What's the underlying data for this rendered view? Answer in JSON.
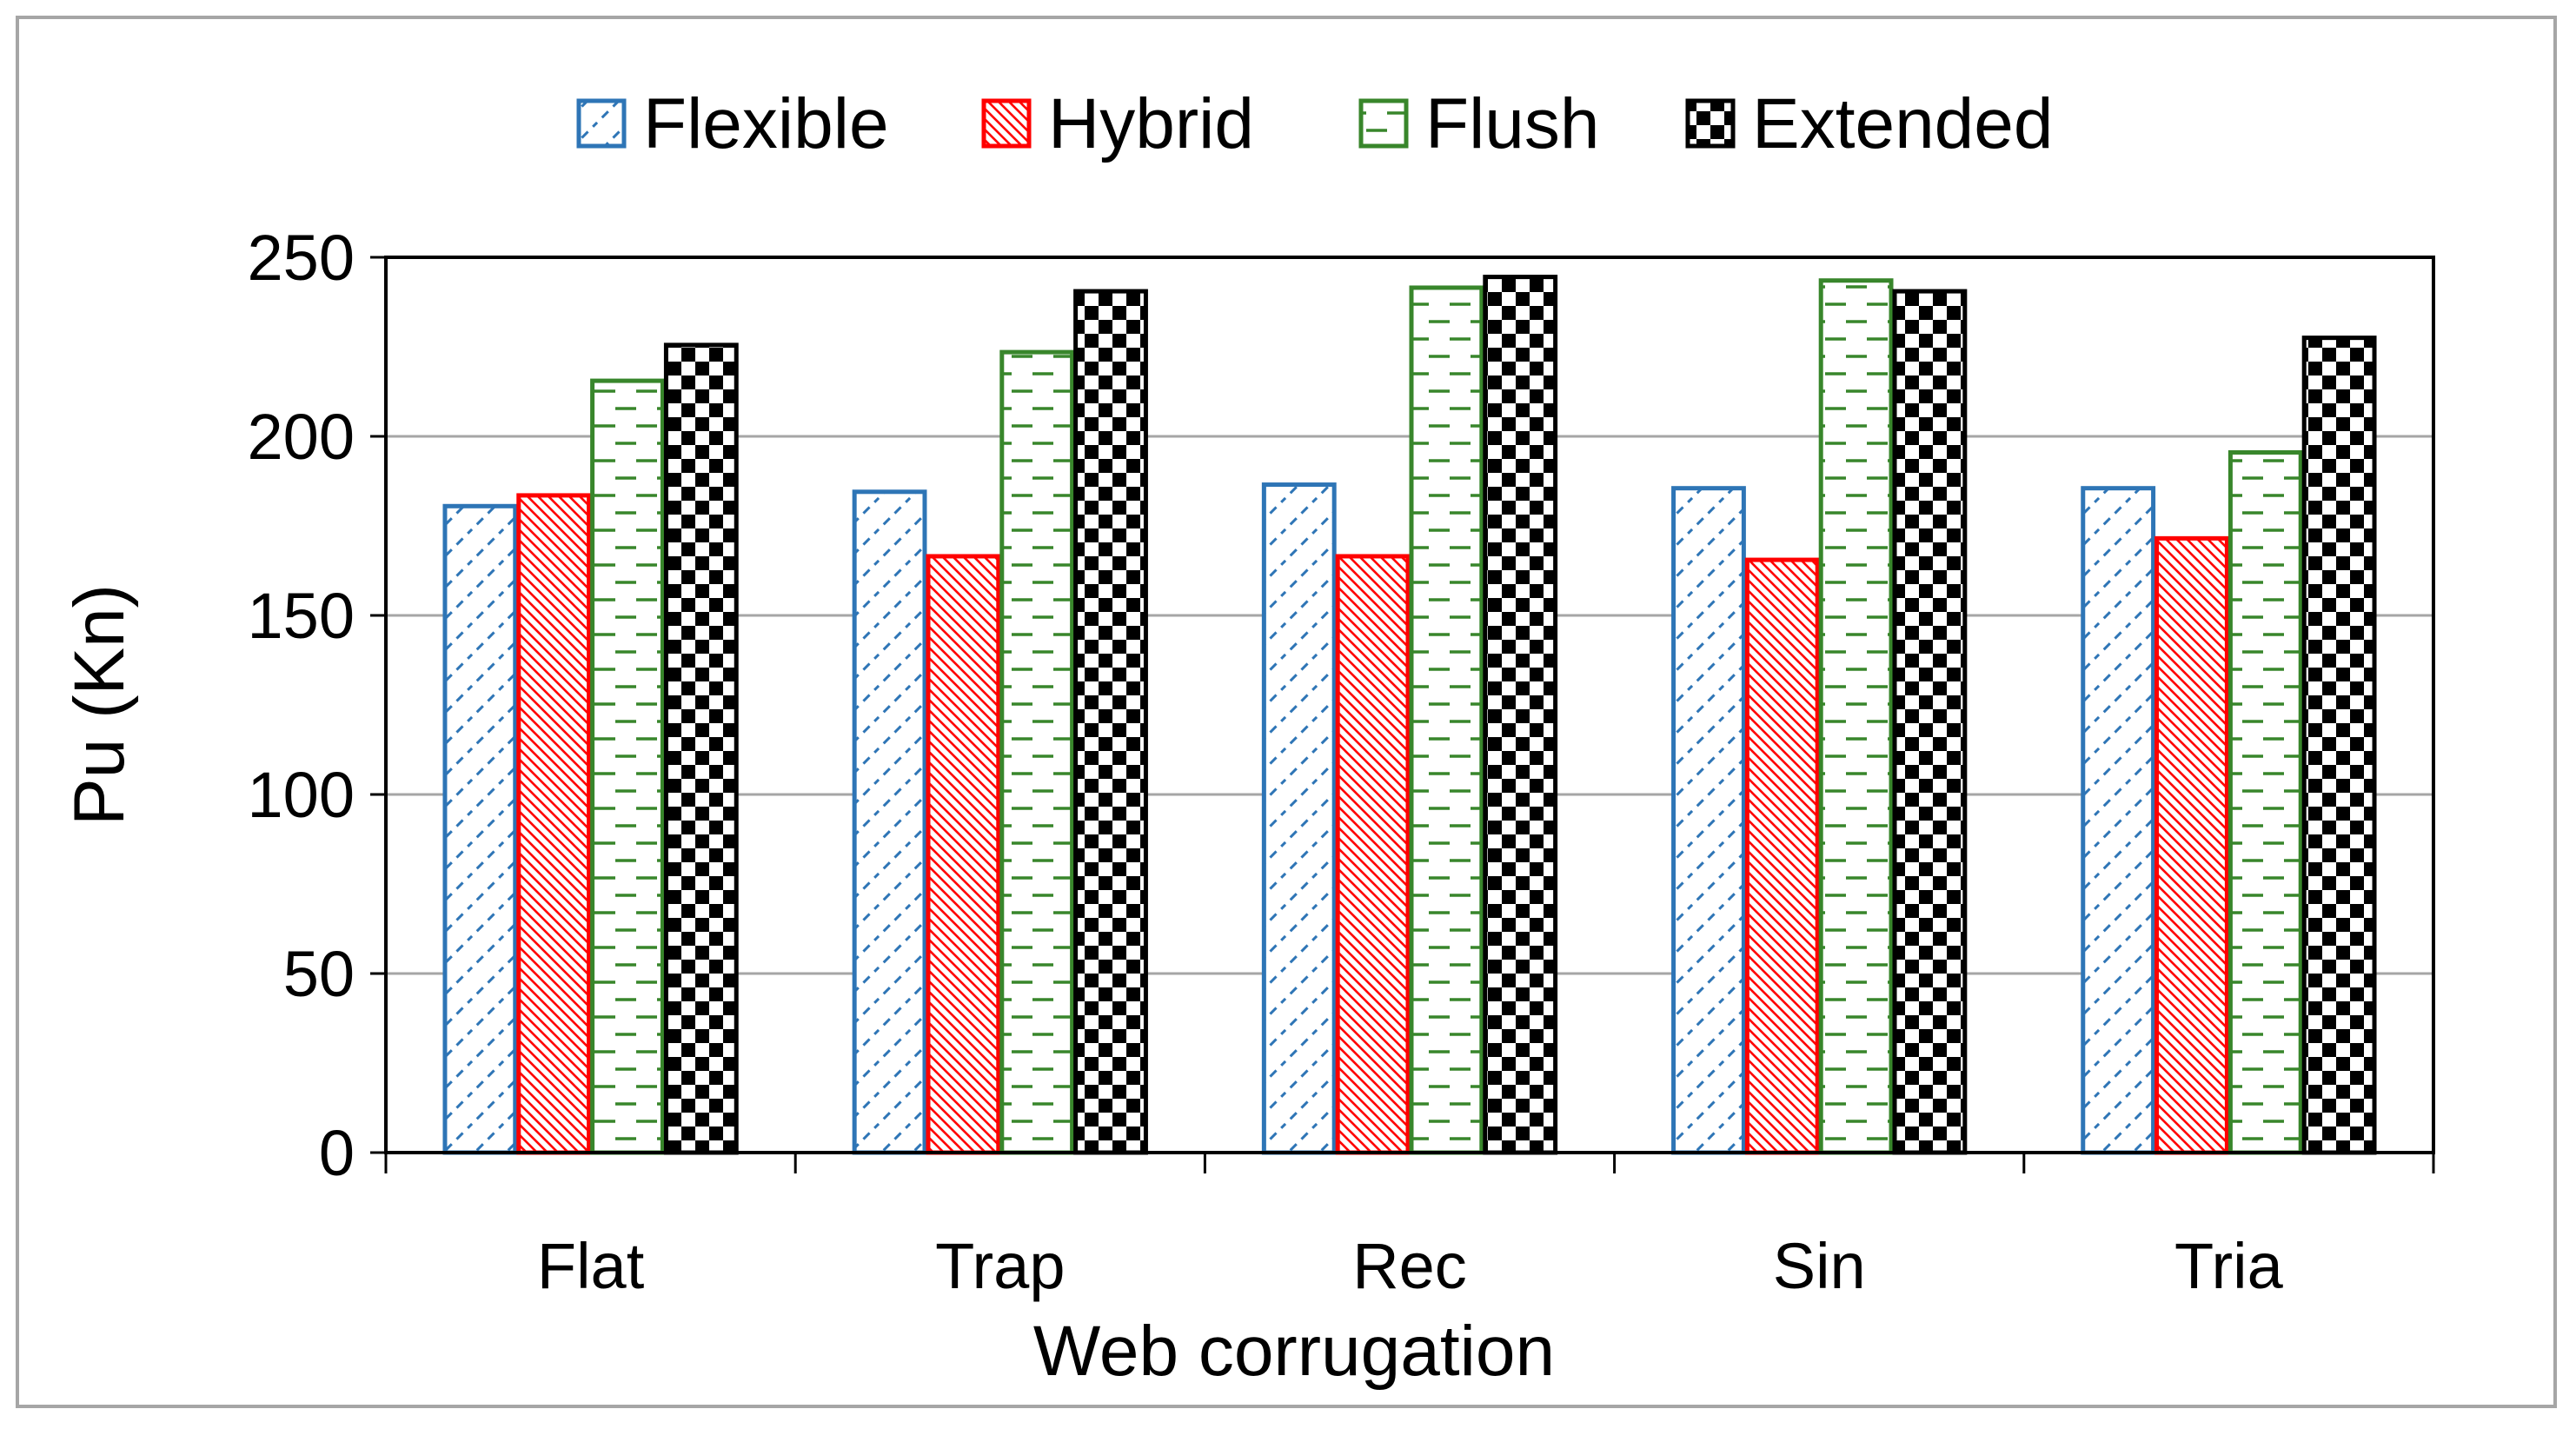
{
  "chart_data": {
    "type": "bar",
    "title": "",
    "xlabel": "Web corrugation",
    "ylabel": "Pu (Kn)",
    "ylim": [
      0,
      250
    ],
    "yticks": [
      0,
      50,
      100,
      150,
      200,
      250
    ],
    "grid": true,
    "legend_position": "top",
    "categories": [
      "Flat",
      "Trap",
      "Rec",
      "Sin",
      "Tria"
    ],
    "series": [
      {
        "name": "Flexible",
        "color": "#2e75b6",
        "pattern": "diagonal-dashed",
        "values": [
          181,
          185,
          187,
          186,
          186
        ]
      },
      {
        "name": "Hybrid",
        "color": "#ff0000",
        "pattern": "diagonal-lines",
        "values": [
          184,
          167,
          167,
          166,
          172
        ]
      },
      {
        "name": "Flush",
        "color": "#38862b",
        "pattern": "horizontal-dashes",
        "values": [
          216,
          224,
          242,
          244,
          196
        ]
      },
      {
        "name": "Extended",
        "color": "#000000",
        "pattern": "checkerboard",
        "values": [
          226,
          241,
          245,
          241,
          228
        ]
      }
    ]
  }
}
